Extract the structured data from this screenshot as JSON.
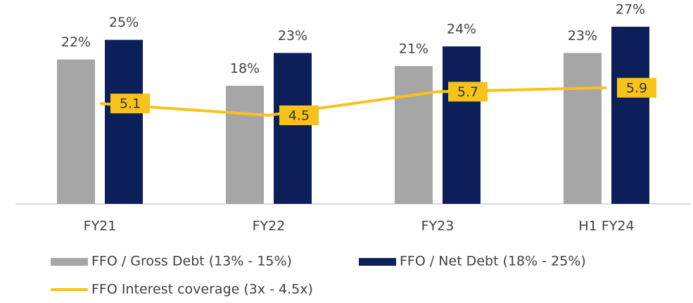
{
  "chart_data": {
    "type": "bar",
    "categories": [
      "FY21",
      "FY22",
      "FY23",
      "H1 FY24"
    ],
    "series": [
      {
        "name": "FFO / Gross Debt (13% - 15%)",
        "color": "#a6a6a6",
        "values": [
          22,
          18,
          21,
          23
        ],
        "value_labels": [
          "22%",
          "18%",
          "21%",
          "23%"
        ]
      },
      {
        "name": "FFO / Net Debt (18% - 25%)",
        "color": "#0c1f5a",
        "values": [
          25,
          23,
          24,
          27
        ],
        "value_labels": [
          "25%",
          "23%",
          "24%",
          "27%"
        ]
      },
      {
        "name": "FFO Interest coverage (3x - 4.5x)",
        "color": "#f7c31b",
        "type": "line",
        "axis": "y2",
        "values": [
          5.1,
          4.5,
          5.7,
          5.9
        ]
      }
    ],
    "ylim": [
      0,
      30
    ],
    "y2lim": [
      0,
      10
    ]
  }
}
